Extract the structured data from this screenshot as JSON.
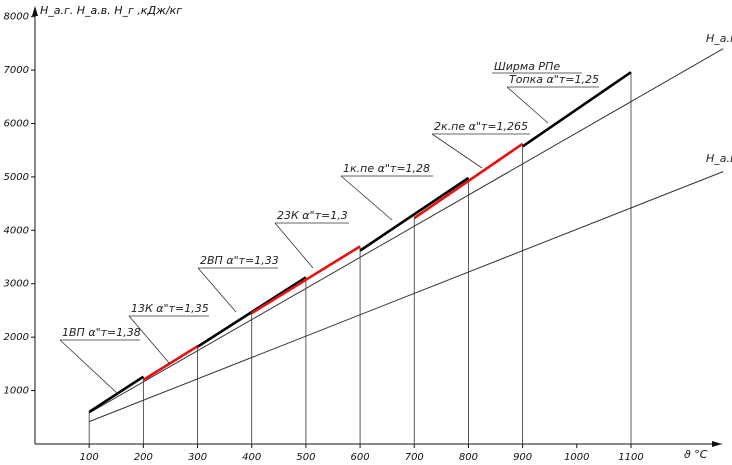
{
  "chart_data": {
    "type": "line",
    "ylabel": "H_a.г.  H_a.в.  H_г  ,кДж/кг",
    "xlabel": "ϑ  °C",
    "x_ticks": [
      100,
      200,
      300,
      400,
      500,
      600,
      700,
      800,
      900,
      1000,
      1100
    ],
    "y_ticks": [
      1000,
      2000,
      3000,
      4000,
      5000,
      6000,
      7000,
      8000
    ],
    "xlim": [
      0,
      1270
    ],
    "ylim": [
      0,
      8400
    ],
    "grid": false,
    "colors": {
      "axis": "#111111",
      "thin": "#333333",
      "black_segment": "#000000",
      "red_segment": "#e81010"
    },
    "series": [
      {
        "name": "Н_a.г.",
        "x": [
          100,
          1270
        ],
        "y": [
          580,
          7400
        ]
      },
      {
        "name": "Н_a.в.",
        "x": [
          100,
          1270
        ],
        "y": [
          420,
          5100
        ]
      }
    ],
    "segments": [
      {
        "label": "1ВП  α\"т=1,38",
        "color": "black",
        "x": [
          100,
          200
        ],
        "y": [
          600,
          1260
        ]
      },
      {
        "label": "13К  α\"т=1,35",
        "color": "red",
        "x": [
          200,
          300
        ],
        "y": [
          1200,
          1830
        ]
      },
      {
        "label": "2ВП  α\"т=1,33",
        "color": "black",
        "x": [
          300,
          500
        ],
        "y": [
          1820,
          3120
        ]
      },
      {
        "label": "23К  α\"т=1,3",
        "color": "red",
        "x": [
          400,
          600
        ],
        "y": [
          2450,
          3700
        ]
      },
      {
        "label": "1к.пе  α\"т=1,28",
        "color": "black",
        "x": [
          600,
          800
        ],
        "y": [
          3620,
          4980
        ]
      },
      {
        "label": "2к.пе  α\"т=1,265",
        "color": "red",
        "x": [
          700,
          900
        ],
        "y": [
          4230,
          5620
        ]
      },
      {
        "label": "Топка  α\"т=1,25",
        "color": "black",
        "x": [
          900,
          1100
        ],
        "y": [
          5570,
          6960
        ]
      }
    ],
    "annotations": [
      "Ширма  РПе",
      "Н_a.г.",
      "Н_a.в."
    ]
  }
}
